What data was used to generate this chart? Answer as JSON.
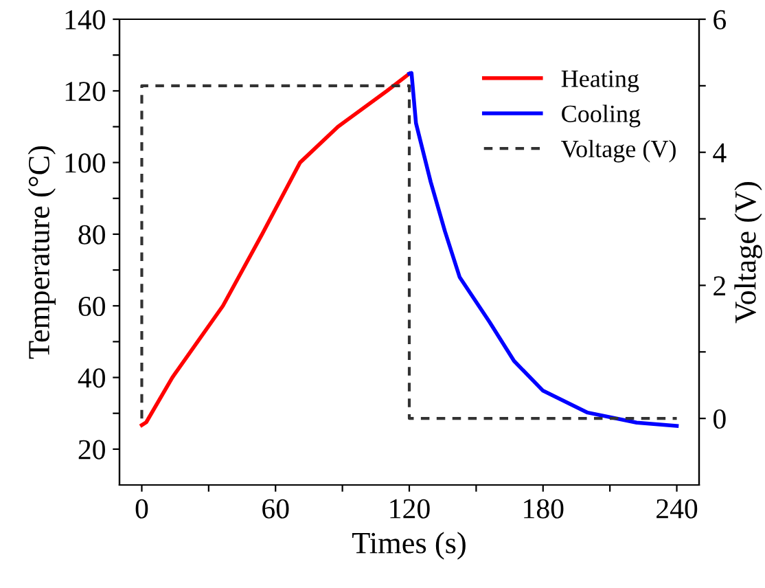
{
  "chart_data": {
    "type": "line",
    "xlabel": "Times (s)",
    "ylabel": "Temperature (°C)",
    "y2label": "Voltage (V)",
    "xlim": [
      -10,
      250
    ],
    "xticks": [
      0,
      {
        "value": 30,
        "label": null
      },
      60,
      {
        "value": 90,
        "label": null
      },
      120,
      {
        "value": 150,
        "label": null
      },
      180,
      {
        "value": 210,
        "label": null
      },
      240
    ],
    "ylim": [
      10,
      140
    ],
    "yticks": [
      20,
      {
        "value": 30,
        "label": null
      },
      40,
      {
        "value": 50,
        "label": null
      },
      60,
      {
        "value": 70,
        "label": null
      },
      80,
      {
        "value": 90,
        "label": null
      },
      100,
      {
        "value": 110,
        "label": null
      },
      120,
      {
        "value": 130,
        "label": null
      },
      140
    ],
    "y2lim": [
      -1,
      6
    ],
    "y2ticks": [
      0,
      {
        "value": 1,
        "label": null
      },
      2,
      {
        "value": 3,
        "label": null
      },
      4,
      {
        "value": 5,
        "label": null
      },
      6
    ],
    "legend": "top right",
    "grid": false,
    "series": [
      {
        "name": "Heating",
        "color": "#ff0000",
        "line_style": "solid",
        "x": [
          0,
          2,
          13.7,
          36.4,
          54,
          71,
          88,
          110,
          120
        ],
        "values": [
          26.7,
          27.5,
          40,
          60,
          80,
          100,
          110,
          120,
          124.8
        ]
      },
      {
        "name": "Cooling",
        "color": "#0000ff",
        "line_style": "solid",
        "x": [
          120,
          121,
          123,
          129.6,
          136,
          142.6,
          156,
          167,
          180,
          200,
          222,
          240
        ],
        "values": [
          124.8,
          125,
          111,
          94.6,
          80.8,
          68,
          55.5,
          44.6,
          36.3,
          30.2,
          27.4,
          26.5
        ]
      },
      {
        "name": "Voltage (V)",
        "color": "#333333",
        "line_style": "dashed",
        "axis": "y2",
        "x": [
          0,
          0,
          120,
          120,
          240
        ],
        "values": [
          0,
          5,
          5,
          0,
          0
        ]
      }
    ]
  }
}
